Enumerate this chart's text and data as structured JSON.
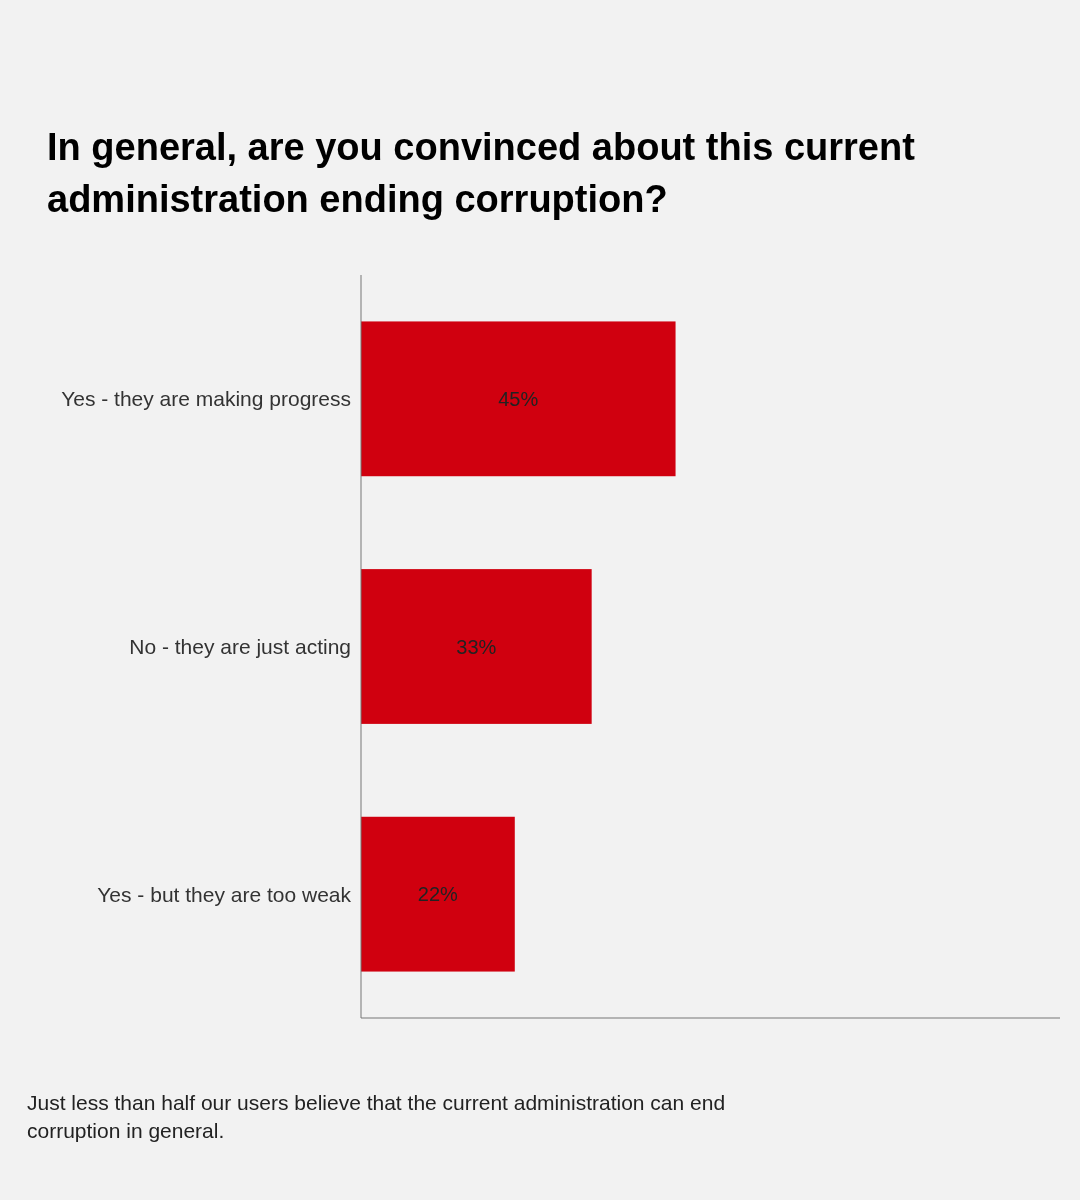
{
  "chart_data": {
    "type": "bar",
    "orientation": "horizontal",
    "title": "In general, are you convinced about this current administration ending corruption?",
    "categories": [
      "Yes - they are making progress",
      "No - they are just acting",
      "Yes - but they are too weak"
    ],
    "values": [
      45,
      33,
      22
    ],
    "value_labels": [
      "45%",
      "33%",
      "22%"
    ],
    "color": "#d0000f",
    "xlim": [
      0,
      100
    ],
    "annotations": [
      "Just less than half our users believe that the current administration can end corruption in general."
    ]
  }
}
